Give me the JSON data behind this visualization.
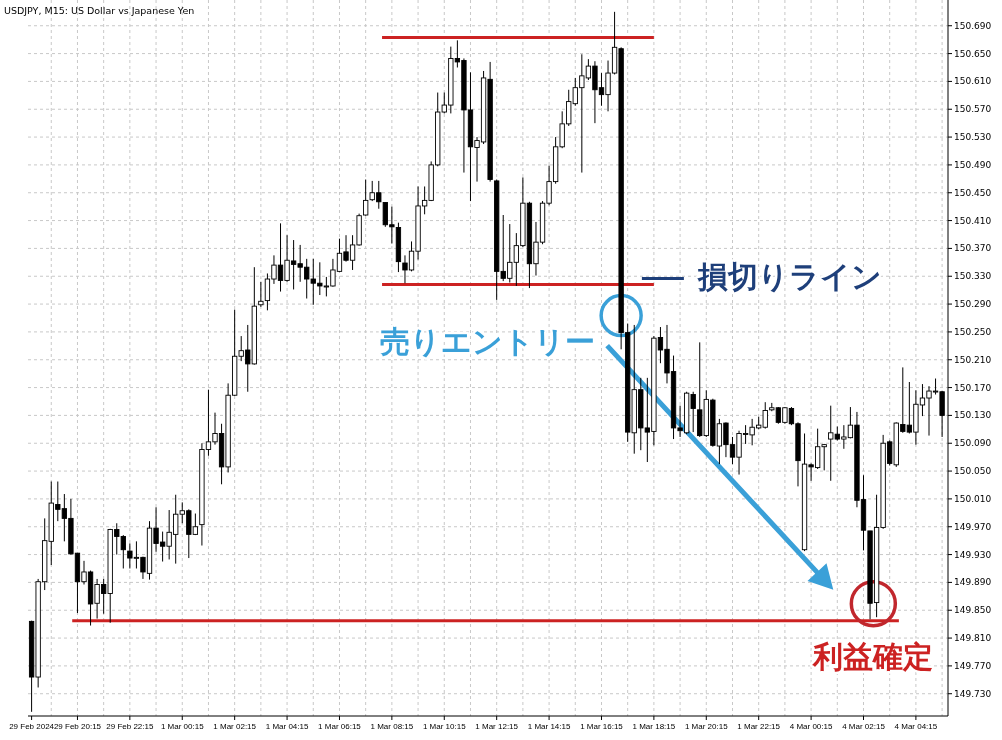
{
  "chart_data": {
    "type": "candlestick",
    "title": "USDJPY, M15:  US Dollar vs Japanese Yen",
    "categories": [
      "29 Feb 2024",
      null,
      null,
      null,
      null,
      null,
      null,
      "29 Feb 20:15",
      null,
      null,
      null,
      null,
      null,
      null,
      null,
      "29 Feb 22:15",
      null,
      null,
      null,
      null,
      null,
      null,
      null,
      "1 Mar 00:15",
      null,
      null,
      null,
      null,
      null,
      null,
      null,
      "1 Mar 02:15",
      null,
      null,
      null,
      null,
      null,
      null,
      null,
      "1 Mar 04:15",
      null,
      null,
      null,
      null,
      null,
      null,
      null,
      "1 Mar 06:15",
      null,
      null,
      null,
      null,
      null,
      null,
      null,
      "1 Mar 08:15",
      null,
      null,
      null,
      null,
      null,
      null,
      null,
      "1 Mar 10:15",
      null,
      null,
      null,
      null,
      null,
      null,
      null,
      "1 Mar 12:15",
      null,
      null,
      null,
      null,
      null,
      null,
      null,
      "1 Mar 14:15",
      null,
      null,
      null,
      null,
      null,
      null,
      null,
      "1 Mar 16:15",
      null,
      null,
      null,
      null,
      null,
      null,
      null,
      "1 Mar 18:15",
      null,
      null,
      null,
      null,
      null,
      null,
      null,
      "1 Mar 20:15",
      null,
      null,
      null,
      null,
      null,
      null,
      null,
      "1 Mar 22:15",
      null,
      null,
      null,
      null,
      null,
      null,
      null,
      "4 Mar 00:15",
      null,
      null,
      null,
      null,
      null,
      null,
      null,
      "4 Mar 02:15",
      null,
      null,
      null,
      null,
      null,
      null,
      null,
      "4 Mar 04:15",
      null,
      null,
      null,
      null
    ],
    "ohlc": [
      [
        149.834,
        149.835,
        149.704,
        149.754
      ],
      [
        149.754,
        149.895,
        149.739,
        149.891
      ],
      [
        149.891,
        149.982,
        149.879,
        149.95
      ],
      [
        149.949,
        150.035,
        149.915,
        150.004
      ],
      [
        150.002,
        150.035,
        149.978,
        149.995
      ],
      [
        149.996,
        150.017,
        149.949,
        149.982
      ],
      [
        149.982,
        150.01,
        149.93,
        149.931
      ],
      [
        149.932,
        149.932,
        149.846,
        149.891
      ],
      [
        149.891,
        149.921,
        149.887,
        149.905
      ],
      [
        149.905,
        149.907,
        149.828,
        149.859
      ],
      [
        149.86,
        149.895,
        149.838,
        149.887
      ],
      [
        149.887,
        149.895,
        149.845,
        149.874
      ],
      [
        149.874,
        149.967,
        149.832,
        149.966
      ],
      [
        149.966,
        149.975,
        149.93,
        149.956
      ],
      [
        149.956,
        149.958,
        149.91,
        149.937
      ],
      [
        149.935,
        149.946,
        149.91,
        149.925
      ],
      [
        149.926,
        149.949,
        149.91,
        149.926
      ],
      [
        149.926,
        149.927,
        149.895,
        149.905
      ],
      [
        149.903,
        149.978,
        149.894,
        149.968
      ],
      [
        149.968,
        149.998,
        149.934,
        149.946
      ],
      [
        149.948,
        149.963,
        149.92,
        149.942
      ],
      [
        149.942,
        149.994,
        149.923,
        149.962
      ],
      [
        149.959,
        150.016,
        149.917,
        149.988
      ],
      [
        149.988,
        150.005,
        149.975,
        149.993
      ],
      [
        149.993,
        149.995,
        149.925,
        149.959
      ],
      [
        149.959,
        149.989,
        149.958,
        149.97
      ],
      [
        149.973,
        150.09,
        149.943,
        150.081
      ],
      [
        150.081,
        150.167,
        150.072,
        150.092
      ],
      [
        150.092,
        150.134,
        150.088,
        150.104
      ],
      [
        150.104,
        150.118,
        150.031,
        150.056
      ],
      [
        150.056,
        150.176,
        150.048,
        150.159
      ],
      [
        150.159,
        150.282,
        150.158,
        150.215
      ],
      [
        150.215,
        150.244,
        150.208,
        150.223
      ],
      [
        150.224,
        150.26,
        150.164,
        150.204
      ],
      [
        150.204,
        150.343,
        150.203,
        150.287
      ],
      [
        150.289,
        150.322,
        150.286,
        150.294
      ],
      [
        150.295,
        150.334,
        150.281,
        150.326
      ],
      [
        150.326,
        150.36,
        150.319,
        150.346
      ],
      [
        150.346,
        150.406,
        150.308,
        150.324
      ],
      [
        150.324,
        150.389,
        150.322,
        150.353
      ],
      [
        150.352,
        150.382,
        150.311,
        150.347
      ],
      [
        150.348,
        150.375,
        150.322,
        150.343
      ],
      [
        150.343,
        150.355,
        150.298,
        150.326
      ],
      [
        150.326,
        150.355,
        150.289,
        150.32
      ],
      [
        150.32,
        150.35,
        150.303,
        150.316
      ],
      [
        150.316,
        150.329,
        150.301,
        150.316
      ],
      [
        150.316,
        150.355,
        150.315,
        150.339
      ],
      [
        150.337,
        150.384,
        150.336,
        150.363
      ],
      [
        150.365,
        150.389,
        150.351,
        150.353
      ],
      [
        150.353,
        150.389,
        150.339,
        150.375
      ],
      [
        150.375,
        150.42,
        150.374,
        150.417
      ],
      [
        150.418,
        150.469,
        150.417,
        150.439
      ],
      [
        150.44,
        150.467,
        150.438,
        150.45
      ],
      [
        150.45,
        150.467,
        150.427,
        150.437
      ],
      [
        150.436,
        150.436,
        150.401,
        150.404
      ],
      [
        150.404,
        150.43,
        150.377,
        150.401
      ],
      [
        150.4,
        150.407,
        150.336,
        150.351
      ],
      [
        150.349,
        150.36,
        150.32,
        150.339
      ],
      [
        150.339,
        150.38,
        150.337,
        150.366
      ],
      [
        150.366,
        150.459,
        150.354,
        150.431
      ],
      [
        150.431,
        150.459,
        150.419,
        150.439
      ],
      [
        150.439,
        150.495,
        150.438,
        150.49
      ],
      [
        150.49,
        150.594,
        150.488,
        150.566
      ],
      [
        150.566,
        150.594,
        150.564,
        150.576
      ],
      [
        150.576,
        150.66,
        150.564,
        150.643
      ],
      [
        150.643,
        150.669,
        150.63,
        150.638
      ],
      [
        150.64,
        150.643,
        150.479,
        150.569
      ],
      [
        150.569,
        150.623,
        150.438,
        150.516
      ],
      [
        150.515,
        150.53,
        150.466,
        150.525
      ],
      [
        150.523,
        150.625,
        150.52,
        150.615
      ],
      [
        150.613,
        150.638,
        150.466,
        150.469
      ],
      [
        150.467,
        150.469,
        150.296,
        150.337
      ],
      [
        150.337,
        150.418,
        150.323,
        150.327
      ],
      [
        150.327,
        150.405,
        150.321,
        150.35
      ],
      [
        150.35,
        150.392,
        150.316,
        150.374
      ],
      [
        150.374,
        150.472,
        150.372,
        150.435
      ],
      [
        150.435,
        150.437,
        150.313,
        150.348
      ],
      [
        150.348,
        150.408,
        150.331,
        150.379
      ],
      [
        150.379,
        150.438,
        150.376,
        150.435
      ],
      [
        150.435,
        150.489,
        150.432,
        150.466
      ],
      [
        150.466,
        150.53,
        150.463,
        150.516
      ],
      [
        150.516,
        150.567,
        150.514,
        150.549
      ],
      [
        150.549,
        150.598,
        150.546,
        150.581
      ],
      [
        150.578,
        150.615,
        150.575,
        150.601
      ],
      [
        150.601,
        150.649,
        150.479,
        150.618
      ],
      [
        150.615,
        150.642,
        150.612,
        150.632
      ],
      [
        150.632,
        150.639,
        150.55,
        150.598
      ],
      [
        150.601,
        150.622,
        150.575,
        150.591
      ],
      [
        150.591,
        150.64,
        150.567,
        150.622
      ],
      [
        150.622,
        150.71,
        150.62,
        150.659
      ],
      [
        150.657,
        150.659,
        150.225,
        150.249
      ],
      [
        150.249,
        150.262,
        150.092,
        150.106
      ],
      [
        150.105,
        150.26,
        150.075,
        150.167
      ],
      [
        150.167,
        150.184,
        150.08,
        150.112
      ],
      [
        150.112,
        150.184,
        150.063,
        150.106
      ],
      [
        150.107,
        150.244,
        150.087,
        150.241
      ],
      [
        150.242,
        150.257,
        150.205,
        150.224
      ],
      [
        150.225,
        150.26,
        150.176,
        150.191
      ],
      [
        150.193,
        150.216,
        150.096,
        150.112
      ],
      [
        150.112,
        150.144,
        150.099,
        150.108
      ],
      [
        150.105,
        150.164,
        150.103,
        150.162
      ],
      [
        150.16,
        150.164,
        150.106,
        150.14
      ],
      [
        150.138,
        150.235,
        150.099,
        150.101
      ],
      [
        150.101,
        150.166,
        150.099,
        150.153
      ],
      [
        150.152,
        150.154,
        150.085,
        150.087
      ],
      [
        150.086,
        150.125,
        150.06,
        150.118
      ],
      [
        150.119,
        150.12,
        150.07,
        150.088
      ],
      [
        150.088,
        150.099,
        150.06,
        150.07
      ],
      [
        150.07,
        150.108,
        150.045,
        150.104
      ],
      [
        150.104,
        150.116,
        150.089,
        150.104
      ],
      [
        150.102,
        150.125,
        150.087,
        150.113
      ],
      [
        150.112,
        150.128,
        150.11,
        150.116
      ],
      [
        150.113,
        150.149,
        150.111,
        150.137
      ],
      [
        150.138,
        150.148,
        150.136,
        150.141
      ],
      [
        150.141,
        150.142,
        150.118,
        150.12
      ],
      [
        150.12,
        150.142,
        150.118,
        150.141
      ],
      [
        150.14,
        150.142,
        150.116,
        150.118
      ],
      [
        150.118,
        150.12,
        150.028,
        150.065
      ],
      [
        149.937,
        150.104,
        149.935,
        150.06
      ],
      [
        150.059,
        150.061,
        150.036,
        150.056
      ],
      [
        150.055,
        150.111,
        150.053,
        150.085
      ],
      [
        150.085,
        150.089,
        150.051,
        150.088
      ],
      [
        150.096,
        150.144,
        150.036,
        150.105
      ],
      [
        150.103,
        150.114,
        150.094,
        150.096
      ],
      [
        150.096,
        150.116,
        150.082,
        150.099
      ],
      [
        150.098,
        150.142,
        150.097,
        150.116
      ],
      [
        150.116,
        150.135,
        149.998,
        150.008
      ],
      [
        150.009,
        150.044,
        149.936,
        149.965
      ],
      [
        149.964,
        149.964,
        149.837,
        149.86
      ],
      [
        149.861,
        150.016,
        149.84,
        149.969
      ],
      [
        149.969,
        150.102,
        149.967,
        150.09
      ],
      [
        150.092,
        150.094,
        150.058,
        150.061
      ],
      [
        150.059,
        150.12,
        150.056,
        150.119
      ],
      [
        150.117,
        150.199,
        150.105,
        150.107
      ],
      [
        150.116,
        150.178,
        150.104,
        150.106
      ],
      [
        150.106,
        150.166,
        150.088,
        150.146
      ],
      [
        150.145,
        150.175,
        150.129,
        150.155
      ],
      [
        150.155,
        150.172,
        150.101,
        150.165
      ],
      [
        150.165,
        150.183,
        150.16,
        150.165
      ],
      [
        150.164,
        150.165,
        150.099,
        150.13
      ]
    ],
    "ylim": [
      149.698,
      150.727
    ],
    "yticks": [
      {
        "value": 149.73,
        "label": "149.730"
      },
      {
        "value": 149.77,
        "label": "149.770"
      },
      {
        "value": 149.81,
        "label": "149.810"
      },
      {
        "value": 149.85,
        "label": "149.850"
      },
      {
        "value": 149.89,
        "label": "149.890"
      },
      {
        "value": 149.93,
        "label": "149.930"
      },
      {
        "value": 149.97,
        "label": "149.970"
      },
      {
        "value": 150.01,
        "label": "150.010"
      },
      {
        "value": 150.05,
        "label": "150.050"
      },
      {
        "value": 150.09,
        "label": "150.090"
      },
      {
        "value": 150.13,
        "label": "150.130"
      },
      {
        "value": 150.17,
        "label": "150.170"
      },
      {
        "value": 150.21,
        "label": "150.210"
      },
      {
        "value": 150.25,
        "label": "150.250"
      },
      {
        "value": 150.29,
        "label": "150.290"
      },
      {
        "value": 150.33,
        "label": "150.330"
      },
      {
        "value": 150.37,
        "label": "150.370"
      },
      {
        "value": 150.41,
        "label": "150.410"
      },
      {
        "value": 150.45,
        "label": "150.450"
      },
      {
        "value": 150.49,
        "label": "150.490"
      },
      {
        "value": 150.53,
        "label": "150.530"
      },
      {
        "value": 150.57,
        "label": "150.570"
      },
      {
        "value": 150.61,
        "label": "150.610"
      },
      {
        "value": 150.65,
        "label": "150.650"
      },
      {
        "value": 150.69,
        "label": "150.690"
      }
    ],
    "grid": true,
    "ref_lines": [
      {
        "axis": "y",
        "value": 150.673,
        "color": "#cc2222"
      },
      {
        "axis": "y",
        "value": 150.318,
        "label": "損切りライン",
        "color": "#cc2222"
      },
      {
        "axis": "y",
        "value": 149.835,
        "label": "利益確定",
        "color": "#cc2222"
      }
    ],
    "annotations": [
      "売りエントリー"
    ]
  }
}
